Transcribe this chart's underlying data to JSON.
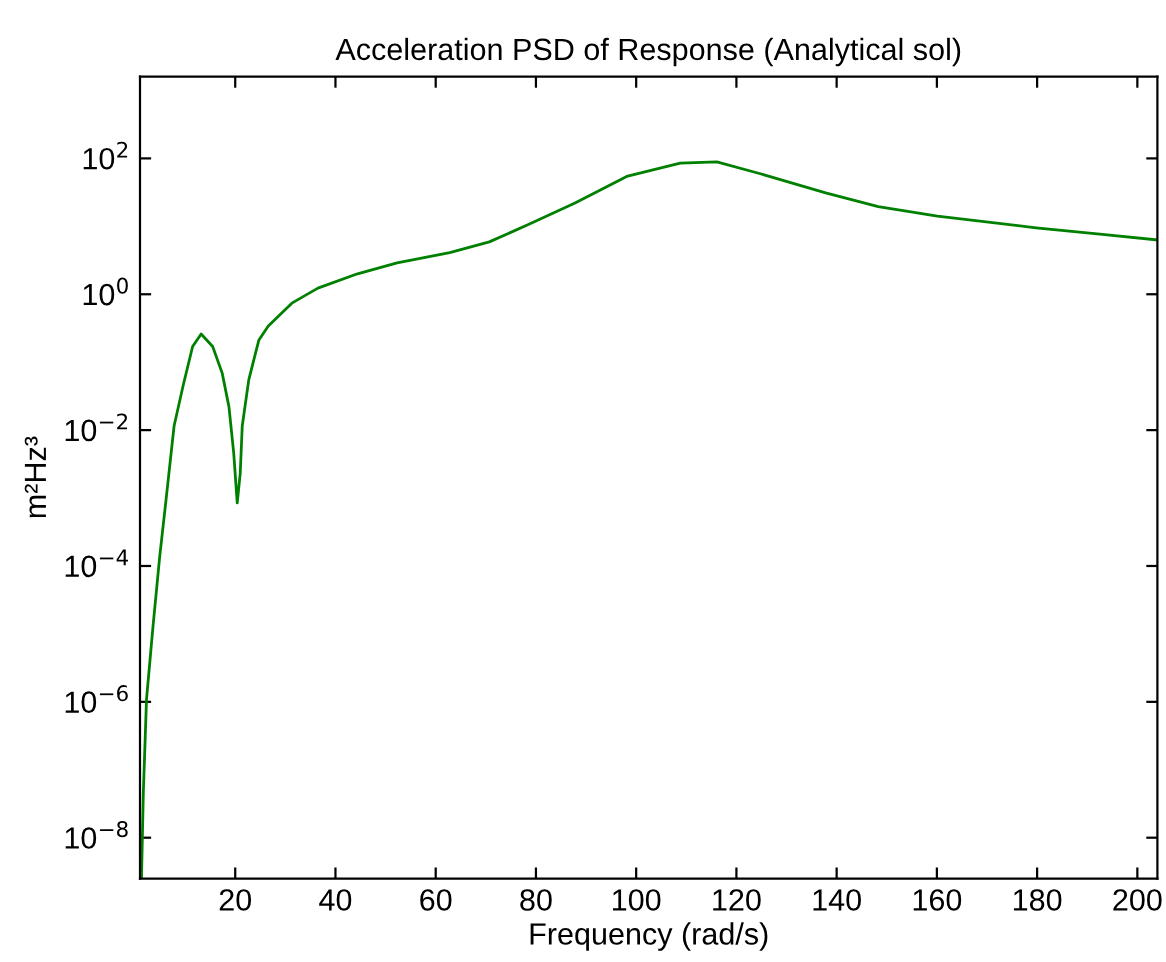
{
  "chart_data": {
    "type": "line",
    "title": "Acceleration PSD of Response (Analytical sol)",
    "xlabel": "Frequency (rad/s)",
    "ylabel": "m²Hz³",
    "log": "y",
    "grid": false,
    "marker": "none",
    "line_style": "solid",
    "xlim": [
      1,
      204
    ],
    "xticks": [
      20,
      40,
      60,
      80,
      100,
      120,
      140,
      160,
      180,
      200
    ],
    "ylim": [
      2.5e-09,
      1600
    ],
    "yticks": [
      {
        "value": 1e-08,
        "label": "10$^{−8}$"
      },
      {
        "value": 1e-06,
        "label": "10$^{−6}$"
      },
      {
        "value": 0.0001,
        "label": "10$^{−4}$"
      },
      {
        "value": 0.01,
        "label": "10$^{−2}$"
      },
      {
        "value": 1,
        "label": "10$^{0}$"
      },
      {
        "value": 100,
        "label": "10$^{2}$"
      }
    ],
    "series": [
      {
        "color": "#008000",
        "x": [
          1.3,
          1.67,
          2.3,
          3.6,
          4.9,
          6.2,
          7.8,
          9.6,
          11.5,
          13.2,
          15.5,
          17.4,
          18.75,
          19.7,
          20.4,
          21,
          21.4,
          22.7,
          24.7,
          26.6,
          31.3,
          36.5,
          44.4,
          52.3,
          62.8,
          70.7,
          78.6,
          87.8,
          98.3,
          108.8,
          116.1,
          124.6,
          137.8,
          148.3,
          160.1,
          179.8,
          193,
          204
        ],
        "values": [
          2.6e-09,
          4.7e-08,
          1.1e-06,
          1.3e-05,
          0.00013,
          0.00095,
          0.0115,
          0.045,
          0.17,
          0.26,
          0.17,
          0.069,
          0.022,
          0.0046,
          0.00085,
          0.0023,
          0.0115,
          0.055,
          0.21,
          0.34,
          0.74,
          1.23,
          2.0,
          2.9,
          4.1,
          5.9,
          10.7,
          22,
          55,
          85,
          89,
          60,
          31,
          19.5,
          14.1,
          9.5,
          7.6,
          6.3
        ]
      }
    ]
  }
}
